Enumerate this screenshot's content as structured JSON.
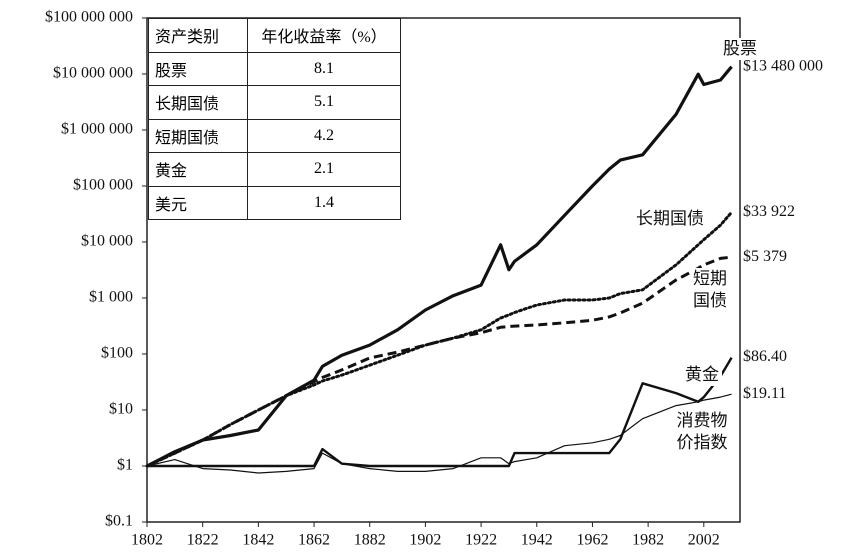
{
  "chart_data": {
    "type": "line",
    "log_scale": true,
    "grid": false,
    "x": [
      1802,
      1812,
      1822,
      1832,
      1842,
      1852,
      1862,
      1865,
      1872,
      1882,
      1892,
      1902,
      1912,
      1922,
      1929,
      1932,
      1934,
      1942,
      1952,
      1962,
      1968,
      1972,
      1980,
      1992,
      2000,
      2002,
      2008,
      2012
    ],
    "xlim": [
      1802,
      2015
    ],
    "xticks": [
      1802,
      1822,
      1842,
      1862,
      1882,
      1902,
      1922,
      1942,
      1962,
      1982,
      2002
    ],
    "ylim": [
      0.1,
      100000000
    ],
    "yticks": [
      {
        "value": 0.1,
        "label": "$0.1"
      },
      {
        "value": 1,
        "label": "$1"
      },
      {
        "value": 10,
        "label": "$10"
      },
      {
        "value": 100,
        "label": "$100"
      },
      {
        "value": 1000,
        "label": "$1 000"
      },
      {
        "value": 10000,
        "label": "$10 000"
      },
      {
        "value": 100000,
        "label": "$100 000"
      },
      {
        "value": 1000000,
        "label": "$1 000 000"
      },
      {
        "value": 10000000,
        "label": "$10 000 000"
      },
      {
        "value": 100000000,
        "label": "$100 000 000"
      }
    ],
    "series": [
      {
        "name": "股票",
        "color": "#111111",
        "dash": "solid",
        "values": [
          1,
          1.8,
          2.9,
          3.5,
          4.4,
          18,
          34,
          60,
          95,
          144,
          270,
          610,
          1100,
          1700,
          8900,
          3200,
          4500,
          8900,
          30000,
          100000,
          200000,
          290000,
          360000,
          1900000,
          9900000,
          6500000,
          7800000,
          13480000
        ],
        "value_labels": [
          null,
          null,
          null,
          null,
          null,
          null,
          null,
          null,
          null,
          null,
          null,
          null,
          null,
          null,
          null,
          null,
          null,
          null,
          null,
          null,
          null,
          null,
          null,
          null,
          null,
          null,
          null,
          "$13 480 000"
        ]
      },
      {
        "name": "长期国债",
        "color": "#111111",
        "dash": "dotted",
        "values": [
          1,
          1.7,
          2.9,
          5.5,
          10,
          18,
          28,
          33,
          42,
          63,
          95,
          144,
          192,
          270,
          440,
          500,
          550,
          750,
          920,
          920,
          1000,
          1200,
          1400,
          3900,
          8900,
          11000,
          20000,
          33922
        ],
        "value_labels": [
          null,
          null,
          null,
          null,
          null,
          null,
          null,
          null,
          null,
          null,
          null,
          null,
          null,
          null,
          null,
          null,
          null,
          null,
          null,
          null,
          null,
          null,
          null,
          null,
          null,
          null,
          null,
          "$33 922"
        ]
      },
      {
        "name": "短期国债",
        "color": "#111111",
        "dash": "dashed",
        "values": [
          1,
          1.7,
          2.9,
          5.5,
          10,
          18,
          32,
          38,
          52,
          85,
          108,
          144,
          192,
          240,
          300,
          310,
          315,
          330,
          360,
          400,
          460,
          540,
          810,
          2100,
          3400,
          3900,
          5100,
          5379
        ],
        "value_labels": [
          null,
          null,
          null,
          null,
          null,
          null,
          null,
          null,
          null,
          null,
          null,
          null,
          null,
          null,
          null,
          null,
          null,
          null,
          null,
          null,
          null,
          null,
          null,
          null,
          null,
          null,
          null,
          "$5 379"
        ]
      },
      {
        "name": "黄金",
        "color": "#111111",
        "dash": "solid",
        "values": [
          1,
          1,
          1,
          1,
          1,
          1,
          1,
          2.0,
          1.1,
          1,
          1,
          1,
          1,
          1,
          1,
          1,
          1.7,
          1.7,
          1.7,
          1.7,
          1.7,
          3,
          30,
          20,
          14,
          17,
          40,
          86.4
        ],
        "value_labels": [
          null,
          null,
          null,
          null,
          null,
          null,
          null,
          null,
          null,
          null,
          null,
          null,
          null,
          null,
          null,
          null,
          null,
          null,
          null,
          null,
          null,
          null,
          null,
          null,
          null,
          null,
          null,
          "$86.40"
        ]
      },
      {
        "name": "消费物价指数",
        "color": "#111111",
        "dash": "solid",
        "values": [
          1,
          1.3,
          0.9,
          0.85,
          0.75,
          0.8,
          0.9,
          1.7,
          1.1,
          0.9,
          0.8,
          0.8,
          0.9,
          1.4,
          1.4,
          1.1,
          1.2,
          1.4,
          2.3,
          2.6,
          3,
          3.5,
          7,
          12,
          14,
          15,
          17,
          19.11
        ],
        "value_labels": [
          null,
          null,
          null,
          null,
          null,
          null,
          null,
          null,
          null,
          null,
          null,
          null,
          null,
          null,
          null,
          null,
          null,
          null,
          null,
          null,
          null,
          null,
          null,
          null,
          null,
          null,
          null,
          "$19.11"
        ]
      }
    ],
    "table": {
      "header": [
        "资产类别",
        "年化收益率（%）"
      ],
      "rows": [
        [
          "股票",
          8.1
        ],
        [
          "长期国债",
          5.1
        ],
        [
          "短期国债",
          4.2
        ],
        [
          "黄金",
          2.1
        ],
        [
          "美元",
          1.4
        ]
      ]
    }
  }
}
